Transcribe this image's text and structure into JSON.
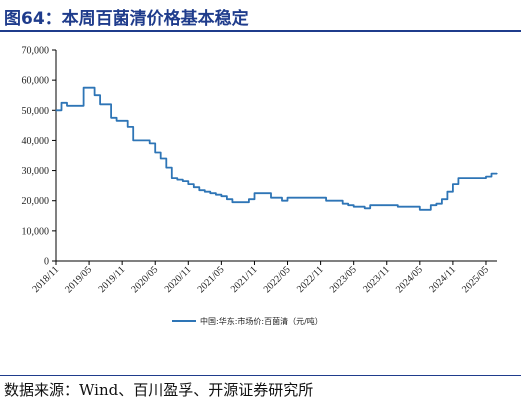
{
  "header": {
    "title": "图64：本周百菌清价格基本稳定"
  },
  "footer": {
    "source": "数据来源：Wind、百川盈孚、开源证券研究所"
  },
  "chart_data": {
    "type": "line",
    "title": "",
    "xlabel": "",
    "ylabel": "",
    "ylim": [
      0,
      70000
    ],
    "yticks": [
      "0",
      "10,000",
      "20,000",
      "30,000",
      "40,000",
      "50,000",
      "60,000",
      "70,000"
    ],
    "xticks": [
      "2018/11",
      "2019/05",
      "2019/11",
      "2020/05",
      "2020/11",
      "2021/05",
      "2021/11",
      "2022/05",
      "2022/11",
      "2023/05",
      "2023/11",
      "2024/05",
      "2024/11",
      "2025/05"
    ],
    "grid": false,
    "legend_position": "bottom",
    "colors": {
      "line": "#2e75b6",
      "axis": "#000000"
    },
    "series": [
      {
        "name": "中国:华东:市场价:百菌清（元/吨）",
        "x": [
          "2018/11",
          "2018/12",
          "2019/01",
          "2019/02",
          "2019/03",
          "2019/04",
          "2019/05",
          "2019/06",
          "2019/07",
          "2019/08",
          "2019/09",
          "2019/10",
          "2019/11",
          "2019/12",
          "2020/01",
          "2020/02",
          "2020/03",
          "2020/04",
          "2020/05",
          "2020/06",
          "2020/07",
          "2020/08",
          "2020/09",
          "2020/10",
          "2020/11",
          "2020/12",
          "2021/01",
          "2021/02",
          "2021/03",
          "2021/04",
          "2021/05",
          "2021/06",
          "2021/07",
          "2021/08",
          "2021/09",
          "2021/10",
          "2021/11",
          "2021/12",
          "2022/01",
          "2022/02",
          "2022/03",
          "2022/04",
          "2022/05",
          "2022/06",
          "2022/07",
          "2022/08",
          "2022/09",
          "2022/10",
          "2022/11",
          "2022/12",
          "2023/01",
          "2023/02",
          "2023/03",
          "2023/04",
          "2023/05",
          "2023/06",
          "2023/07",
          "2023/08",
          "2023/09",
          "2023/10",
          "2023/11",
          "2023/12",
          "2024/01",
          "2024/02",
          "2024/03",
          "2024/04",
          "2024/05",
          "2024/06",
          "2024/07",
          "2024/08",
          "2024/09",
          "2024/10",
          "2024/11",
          "2024/12",
          "2025/01",
          "2025/02",
          "2025/03",
          "2025/04",
          "2025/05",
          "2025/06",
          "2025/07"
        ],
        "values": [
          50000,
          52500,
          51500,
          51500,
          51500,
          57500,
          57500,
          55000,
          52000,
          52000,
          47500,
          46500,
          46500,
          44500,
          40000,
          40000,
          40000,
          39000,
          36000,
          34000,
          31000,
          27500,
          27000,
          26500,
          25500,
          24500,
          23500,
          23000,
          22500,
          22000,
          21500,
          20500,
          19500,
          19500,
          19500,
          20500,
          22500,
          22500,
          22500,
          21000,
          21000,
          20000,
          21000,
          21000,
          21000,
          21000,
          21000,
          21000,
          21000,
          20000,
          20000,
          20000,
          19000,
          18500,
          18000,
          18000,
          17500,
          18500,
          18500,
          18500,
          18500,
          18500,
          18000,
          18000,
          18000,
          18000,
          17000,
          17000,
          18500,
          19000,
          20500,
          23000,
          25500,
          27500,
          27500,
          27500,
          27500,
          27500,
          28000,
          29000,
          29000
        ]
      }
    ]
  }
}
